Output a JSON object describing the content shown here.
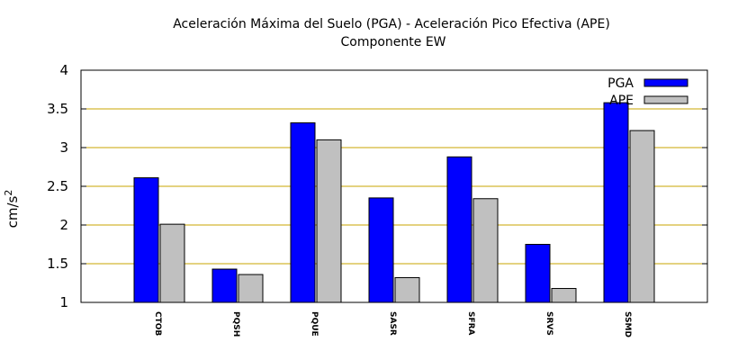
{
  "chart_data": {
    "type": "bar",
    "title_line1": "Aceleración Máxima del Suelo (PGA) -  Aceleración Pico Efectiva (APE)",
    "title_line2": "Componente EW",
    "ylabel": "cm/s",
    "ylabel_sup": "2",
    "xlabel": "",
    "ylim": [
      1,
      4
    ],
    "yticks": [
      1,
      1.5,
      2,
      2.5,
      3,
      3.5,
      4
    ],
    "ytick_labels": [
      "1",
      "1.5",
      "2",
      "2.5",
      "3",
      "3.5",
      "4"
    ],
    "grid_y": true,
    "grid_color": "#c8a400",
    "legend_position": "top-right",
    "categories": [
      "CTOB",
      "PQSH",
      "PQUE",
      "SASR",
      "SFRA",
      "SRVS",
      "SSMD"
    ],
    "series": [
      {
        "name": "PGA",
        "color": "#0000ff",
        "values": [
          2.61,
          1.43,
          3.32,
          2.35,
          2.88,
          1.75,
          3.58
        ]
      },
      {
        "name": "APE",
        "color": "#c0c0c0",
        "values": [
          2.01,
          1.36,
          3.1,
          1.32,
          2.34,
          1.18,
          3.22
        ]
      }
    ]
  }
}
